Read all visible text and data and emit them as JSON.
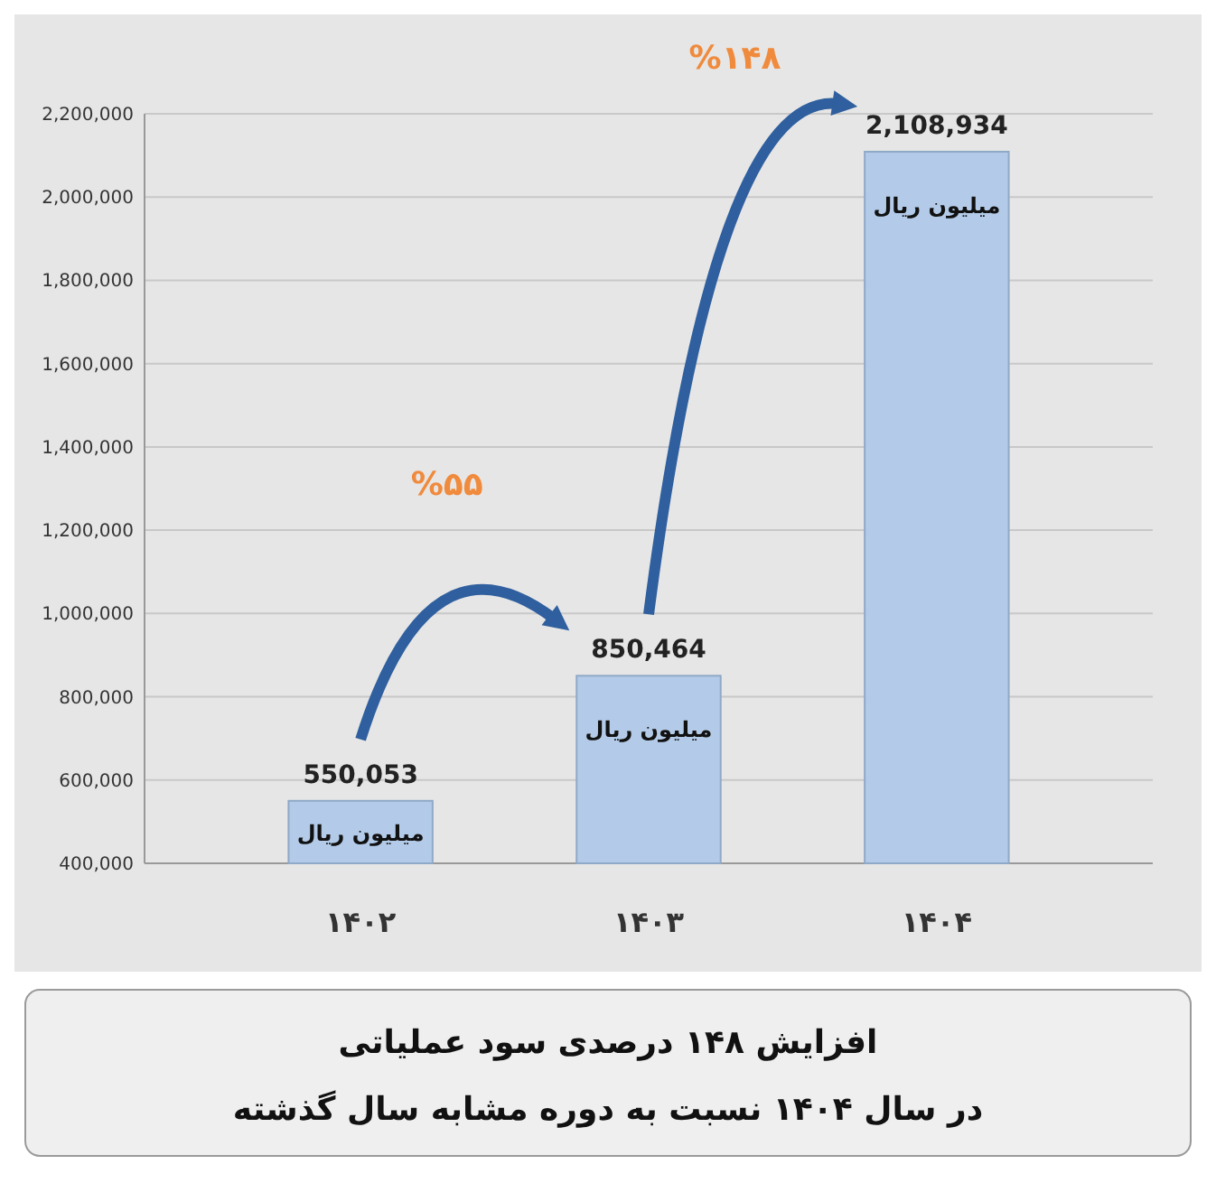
{
  "chart_data": {
    "type": "bar",
    "title": "افزایش ۱۴۸ درصدی سود عملیاتی",
    "subtitle": "در سال ۱۴۰۴ نسبت به دوره مشابه سال گذشته",
    "categories": [
      "۱۴۰۲",
      "۱۴۰۳",
      "۱۴۰۴"
    ],
    "values": [
      550053,
      850464,
      2108934
    ],
    "value_labels": [
      "550,053",
      "850,464",
      "2,108,934"
    ],
    "color": "#b3cbe8",
    "ylim": [
      400000,
      2200000
    ],
    "yticks": [
      {
        "value": 400000,
        "label": "400,000"
      },
      {
        "value": 600000,
        "label": "600,000"
      },
      {
        "value": 800000,
        "label": "800,000"
      },
      {
        "value": 1000000,
        "label": "1,000,000"
      },
      {
        "value": 1200000,
        "label": "1,200,000"
      },
      {
        "value": 1400000,
        "label": "1,400,000"
      },
      {
        "value": 1600000,
        "label": "1,600,000"
      },
      {
        "value": 1800000,
        "label": "1,800,000"
      },
      {
        "value": 2000000,
        "label": "2,000,000"
      },
      {
        "value": 2200000,
        "label": "2,200,000"
      }
    ],
    "grid": "y",
    "annotations": [
      {
        "text": "میلیون ریال",
        "x": "۱۴۰۲",
        "y": 550053
      },
      {
        "text": "میلیون ریال",
        "x": "۱۴۰۳",
        "y": 850464
      },
      {
        "text": "میلیون ریال",
        "x": "۱۴۰۴",
        "y": 2108934
      },
      "%۵۵",
      "%۱۴۸"
    ]
  }
}
